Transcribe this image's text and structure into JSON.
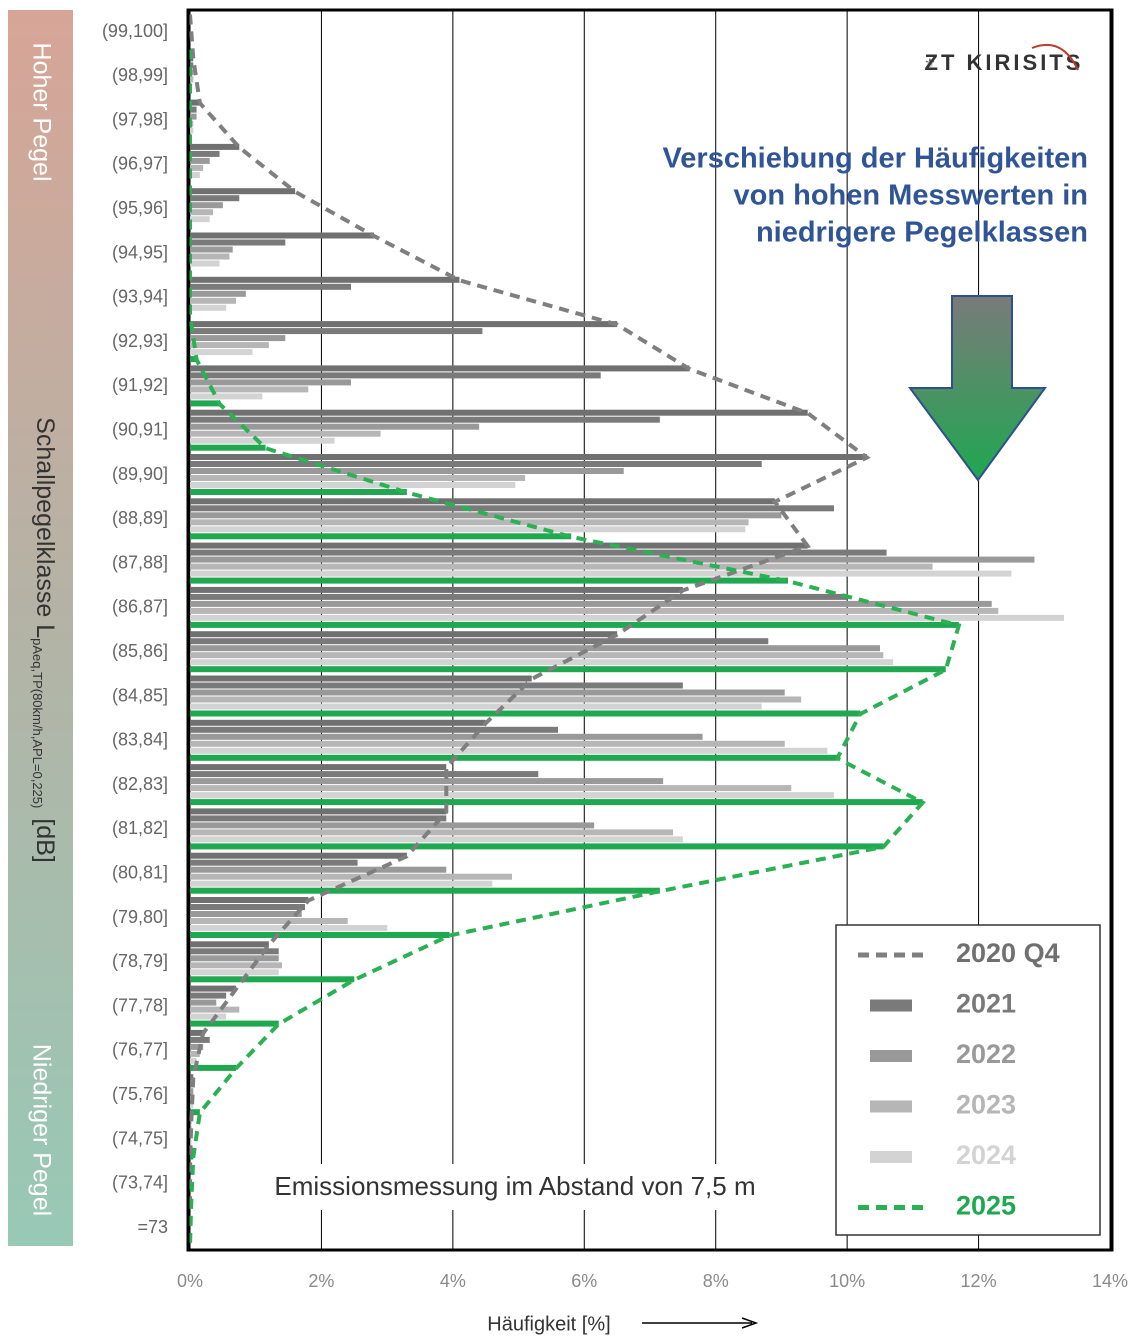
{
  "chart_data": {
    "type": "bar",
    "orientation": "horizontal",
    "y_label": "Schallpegelklasse L",
    "y_label_subscript": "pAeq,TP(80km/h,APL=0,225)",
    "y_label_unit": "[dB]",
    "x_label": "Häufigkeit [%]",
    "band_top_label": "Hoher Pegel",
    "band_bottom_label": "Niedriger Pegel",
    "logo": "ZT KIRISITS",
    "annotation": [
      "Verschiebung der Häufigkeiten",
      "von hohen Messwerten in",
      "niedrigere Pegelklassen"
    ],
    "note": "Emissionsmessung im Abstand von 7,5 m",
    "categories": [
      "(99,100]",
      "(98,99]",
      "(97,98]",
      "(96,97]",
      "(95,96]",
      "(94,95]",
      "(93,94]",
      "(92,93]",
      "(91,92]",
      "(90,91]",
      "(89,90]",
      "(88,89]",
      "(87,88]",
      "(86,87]",
      "(85,86]",
      "(84,85]",
      "(83,84]",
      "(82,83]",
      "(81,82]",
      "(80,81]",
      "(79,80]",
      "(78,79]",
      "(77,78]",
      "(76,77]",
      "(75,76]",
      "(74,75]",
      "(73,74]",
      "=73"
    ],
    "series": [
      {
        "name": "2020 Q4",
        "color": "#707070",
        "line": true,
        "line_color": "#7f7f7f",
        "values": [
          0,
          0.05,
          0.15,
          0.75,
          1.6,
          2.8,
          4.1,
          6.5,
          7.6,
          9.4,
          10.3,
          8.9,
          9.4,
          7.5,
          6.5,
          5.2,
          4.5,
          3.9,
          3.9,
          3.3,
          1.8,
          1.2,
          0.7,
          0.2,
          0.05,
          0.02,
          0,
          0
        ]
      },
      {
        "name": "2021",
        "color": "#7a7a7a",
        "line": false,
        "values": [
          0,
          0.05,
          0.1,
          0.45,
          0.75,
          1.45,
          2.45,
          4.45,
          6.25,
          7.15,
          8.7,
          9.8,
          10.6,
          10.0,
          8.8,
          7.5,
          5.6,
          5.3,
          3.9,
          2.55,
          1.75,
          1.35,
          0.55,
          0.3,
          0.05,
          0.02,
          0,
          0
        ]
      },
      {
        "name": "2022",
        "color": "#999999",
        "line": false,
        "values": [
          0,
          0.05,
          0.1,
          0.3,
          0.5,
          0.65,
          0.85,
          1.45,
          2.45,
          4.4,
          6.6,
          9.0,
          12.85,
          12.2,
          10.5,
          9.05,
          7.8,
          7.2,
          6.15,
          3.9,
          1.7,
          1.35,
          0.4,
          0.2,
          0.05,
          0.02,
          0,
          0
        ]
      },
      {
        "name": "2023",
        "color": "#b6b6b6",
        "line": false,
        "values": [
          0,
          0.05,
          0.05,
          0.2,
          0.35,
          0.6,
          0.7,
          1.2,
          1.8,
          2.9,
          5.1,
          8.5,
          11.3,
          12.3,
          10.55,
          9.3,
          9.05,
          9.15,
          7.35,
          4.9,
          2.4,
          1.4,
          0.75,
          0.15,
          0.05,
          0.02,
          0,
          0
        ]
      },
      {
        "name": "2024",
        "color": "#d3d3d3",
        "line": false,
        "values": [
          0,
          0.02,
          0.05,
          0.15,
          0.3,
          0.45,
          0.55,
          0.95,
          1.1,
          2.2,
          4.95,
          8.45,
          12.5,
          13.3,
          10.7,
          8.7,
          9.7,
          9.8,
          7.5,
          4.6,
          3.0,
          1.35,
          0.55,
          0.1,
          0.05,
          0.02,
          0,
          0
        ]
      },
      {
        "name": "2025",
        "color": "#1fa84f",
        "line": true,
        "line_color": "#2ab154",
        "values": [
          0,
          0,
          0,
          0,
          0,
          0,
          0,
          0.1,
          0.45,
          1.15,
          3.3,
          5.8,
          9.1,
          11.7,
          11.5,
          10.2,
          9.85,
          11.15,
          10.55,
          7.15,
          3.95,
          2.5,
          1.35,
          0.7,
          0.15,
          0.05,
          0.02,
          0
        ]
      }
    ],
    "xlim": [
      0,
      14
    ],
    "xticks": [
      {
        "value": 0,
        "label": "0%"
      },
      {
        "value": 2,
        "label": "2%"
      },
      {
        "value": 4,
        "label": "4%"
      },
      {
        "value": 6,
        "label": "6%"
      },
      {
        "value": 8,
        "label": "8%"
      },
      {
        "value": 10,
        "label": "10%"
      },
      {
        "value": 12,
        "label": "12%"
      },
      {
        "value": 14,
        "label": "14%"
      }
    ],
    "grid": true,
    "legend": "lower right"
  }
}
